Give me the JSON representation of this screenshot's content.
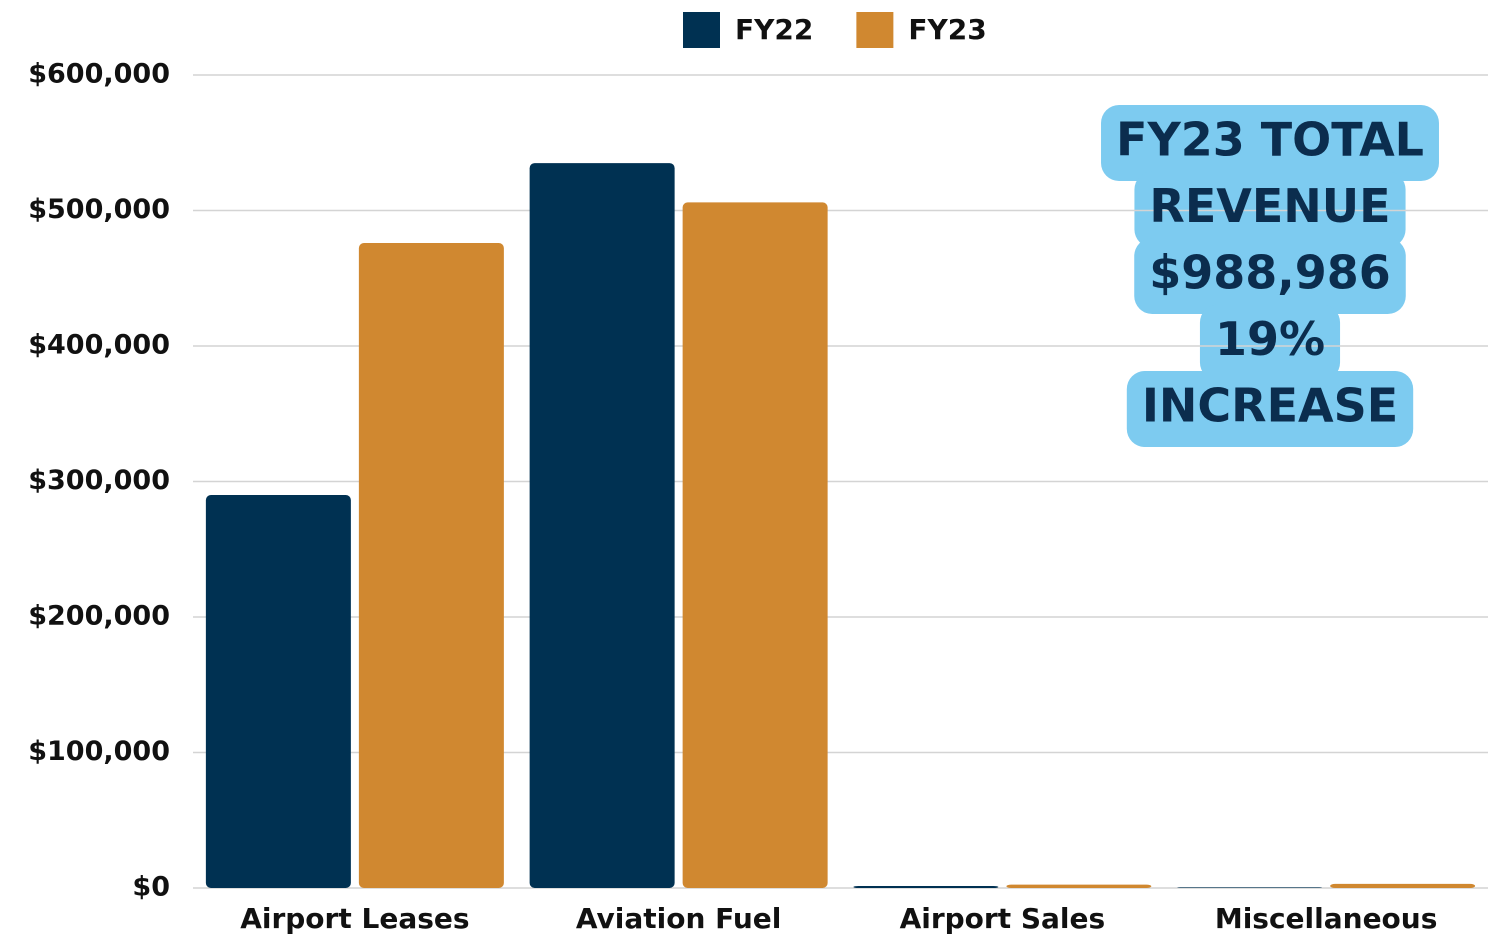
{
  "chart_data": {
    "type": "bar",
    "categories": [
      "Airport Leases",
      "Aviation Fuel",
      "Airport Sales",
      "Miscellaneous"
    ],
    "series": [
      {
        "name": "FY22",
        "color": "#003152",
        "values": [
          290000,
          535000,
          1500,
          500
        ]
      },
      {
        "name": "FY23",
        "color": "#d08830",
        "values": [
          476000,
          506000,
          2500,
          3000
        ]
      }
    ],
    "ylim": [
      0,
      600000
    ],
    "yticks": [
      {
        "value": 0,
        "label": "$0"
      },
      {
        "value": 100000,
        "label": "$100,000"
      },
      {
        "value": 200000,
        "label": "$200,000"
      },
      {
        "value": 300000,
        "label": "$300,000"
      },
      {
        "value": 400000,
        "label": "$400,000"
      },
      {
        "value": 500000,
        "label": "$500,000"
      },
      {
        "value": 600000,
        "label": "$600,000"
      }
    ],
    "grid": true,
    "legend": "top",
    "annotation": [
      "FY23 TOTAL",
      "REVENUE",
      "$988,986",
      "19%",
      "INCREASE"
    ],
    "annotation_color": "#7dcbf0"
  }
}
